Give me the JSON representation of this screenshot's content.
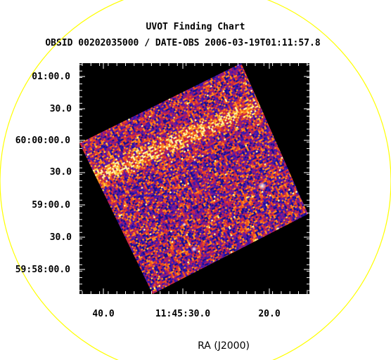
{
  "chart": {
    "title": "UVOT Finding Chart",
    "subtitle": "OBSID 00202035000 / DATE-OBS 2006-03-19T01:11:57.8",
    "x_axis_label": "RA (J2000)",
    "y_tick_labels": [
      "01:00.0",
      "30.0",
      "60:00:00.0",
      "30.0",
      "59:00.0",
      "30.0",
      "59:58:00.0"
    ],
    "x_tick_labels": [
      "40.0",
      "11:45:30.0",
      "20.0"
    ]
  },
  "colors": {
    "background": "#000000",
    "circle": "#ffff00",
    "ticks": "#ffffff",
    "image_low": "#2a1aa8",
    "image_mid": "#c0204a",
    "image_high": "#ffd040"
  }
}
